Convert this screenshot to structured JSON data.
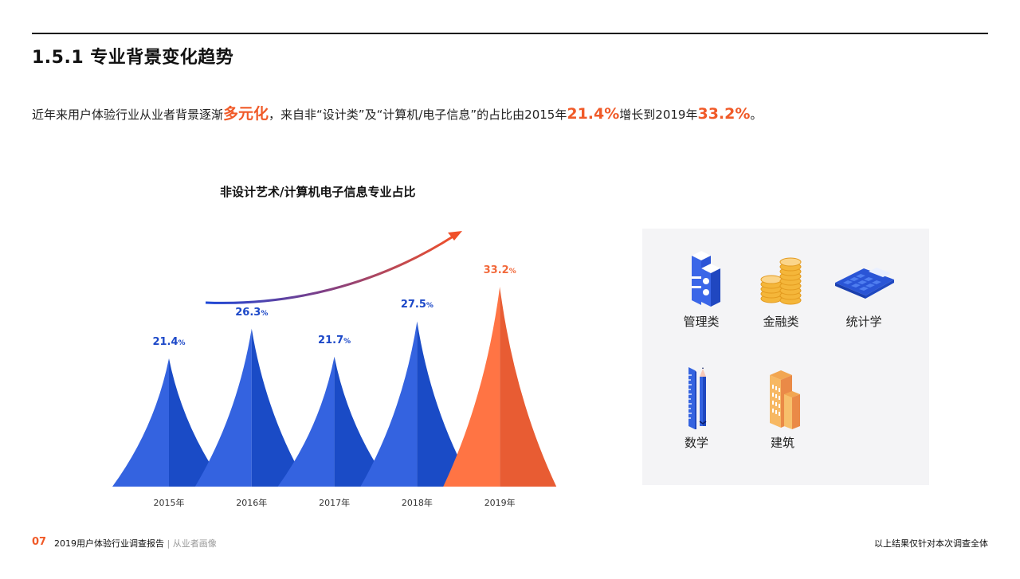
{
  "header": {
    "title": "1.5.1 专业背景变化趋势"
  },
  "lead": {
    "part1": "近年来用户体验行业从业者背景逐渐",
    "highlight1": "多元化",
    "part2": "，来自非“设计类”及“计算机/电子信息”的占比由2015年",
    "highlight2": "21.4%",
    "part3": "增长到2019年",
    "highlight3": "33.2%",
    "part4": "。"
  },
  "colors": {
    "accent_orange": "#f05a28",
    "blue_light": "#3463e0",
    "blue_dark": "#1a4bc6",
    "orange_light": "#ff7444",
    "orange_dark": "#e85c33",
    "panel_bg": "#f4f4f6"
  },
  "chart_data": {
    "type": "area",
    "title": "非设计艺术/计算机电子信息专业占比",
    "categories": [
      "2015年",
      "2016年",
      "2017年",
      "2018年",
      "2019年"
    ],
    "values": [
      21.4,
      26.3,
      21.7,
      27.5,
      33.2
    ],
    "value_labels": [
      "21.4",
      "26.3",
      "21.7",
      "27.5",
      "33.2"
    ],
    "unit": "%",
    "highlight_index": 4,
    "xlabel": "",
    "ylabel": "",
    "grid": false,
    "legend": "none",
    "annotation": "trend-arrow-up"
  },
  "categories_panel": {
    "items": [
      {
        "label": "管理类",
        "icon": "books-icon"
      },
      {
        "label": "金融类",
        "icon": "coins-icon"
      },
      {
        "label": "统计学",
        "icon": "calculator-icon"
      },
      {
        "label": "数学",
        "icon": "ruler-pencil-icon"
      },
      {
        "label": "建筑",
        "icon": "building-icon"
      }
    ]
  },
  "footer": {
    "page_number": "07",
    "report_title": "2019用户体验行业调查报告",
    "separator": " | ",
    "section": "从业者画像",
    "note": "以上结果仅针对本次调查全体"
  }
}
